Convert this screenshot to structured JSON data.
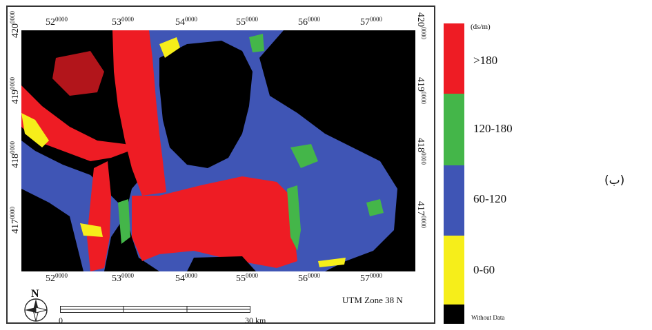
{
  "map": {
    "colors": {
      "background": "#000000",
      "red": "#ee1c24",
      "green": "#44b649",
      "blue": "#3f55b5",
      "yellow": "#f6ee1a"
    },
    "x_ticks": [
      {
        "main": "52",
        "sup": "0000"
      },
      {
        "main": "53",
        "sup": "0000"
      },
      {
        "main": "54",
        "sup": "0000"
      },
      {
        "main": "55",
        "sup": "0000"
      },
      {
        "main": "56",
        "sup": "0000"
      },
      {
        "main": "57",
        "sup": "0000"
      }
    ],
    "y_ticks": [
      {
        "main": "420",
        "sup": "0000"
      },
      {
        "main": "419",
        "sup": "0000"
      },
      {
        "main": "418",
        "sup": "0000"
      },
      {
        "main": "417",
        "sup": "0000"
      }
    ],
    "scale_zero": "0",
    "scale_end": "30 km",
    "utm": "UTM Zone 38 N",
    "north": "N"
  },
  "legend": {
    "unit": "(ds/m)",
    "classes": [
      {
        "label": ">180",
        "color": "#ee1c24"
      },
      {
        "label": "120-180",
        "color": "#44b649"
      },
      {
        "label": "60-120",
        "color": "#3f55b5"
      },
      {
        "label": "0-60",
        "color": "#f6ee1a"
      }
    ],
    "no_data": {
      "label": "Without Data",
      "color": "#000000"
    }
  },
  "side_label": "(ب)"
}
